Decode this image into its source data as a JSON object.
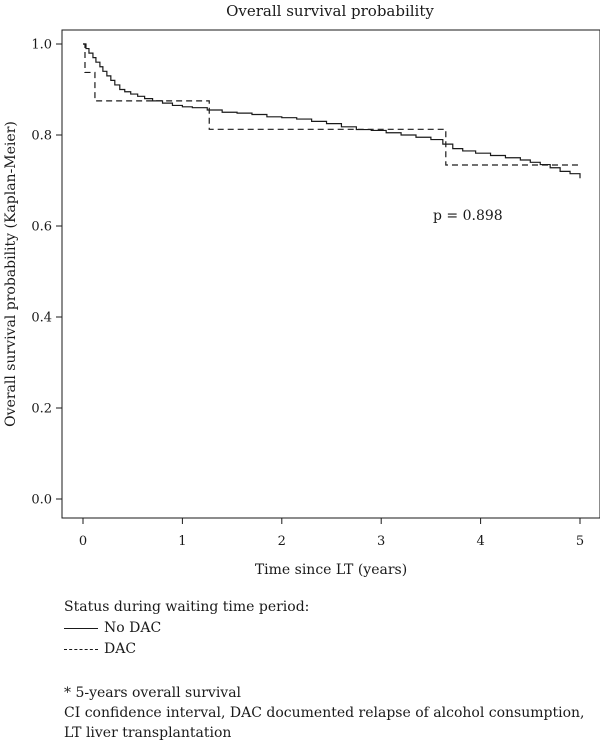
{
  "chart_data": {
    "type": "line",
    "title": "Overall survival probability",
    "xlabel": "Time since LT (years)",
    "ylabel": "Overall survival probability (Kaplan-Meier)",
    "xlim": [
      0,
      5
    ],
    "ylim": [
      0,
      1
    ],
    "x_ticks": [
      "0",
      "1",
      "2",
      "3",
      "4",
      "5"
    ],
    "y_ticks": [
      "0.0",
      "0.2",
      "0.4",
      "0.6",
      "0.8",
      "1.0"
    ],
    "grid": false,
    "annotation": "p = 0.898",
    "series": [
      {
        "name": "No DAC",
        "style": "solid",
        "x": [
          0,
          0.03,
          0.06,
          0.1,
          0.13,
          0.17,
          0.2,
          0.24,
          0.28,
          0.32,
          0.37,
          0.42,
          0.48,
          0.55,
          0.62,
          0.7,
          0.8,
          0.9,
          1.0,
          1.1,
          1.25,
          1.4,
          1.55,
          1.7,
          1.85,
          2.0,
          2.15,
          2.3,
          2.45,
          2.6,
          2.75,
          2.9,
          3.05,
          3.2,
          3.35,
          3.5,
          3.62,
          3.72,
          3.82,
          3.95,
          4.1,
          4.25,
          4.4,
          4.5,
          4.6,
          4.7,
          4.8,
          4.9,
          5.0
        ],
        "y": [
          1.0,
          0.99,
          0.98,
          0.97,
          0.96,
          0.95,
          0.94,
          0.93,
          0.92,
          0.91,
          0.9,
          0.895,
          0.89,
          0.885,
          0.88,
          0.875,
          0.87,
          0.865,
          0.862,
          0.86,
          0.855,
          0.85,
          0.848,
          0.845,
          0.84,
          0.838,
          0.835,
          0.83,
          0.825,
          0.818,
          0.812,
          0.81,
          0.805,
          0.8,
          0.795,
          0.79,
          0.78,
          0.77,
          0.765,
          0.76,
          0.755,
          0.75,
          0.745,
          0.74,
          0.735,
          0.728,
          0.72,
          0.715,
          0.705
        ]
      },
      {
        "name": "DAC",
        "style": "dashed",
        "x": [
          0,
          0.02,
          0.12,
          1.27,
          3.65,
          5.0
        ],
        "y": [
          1.0,
          0.9375,
          0.875,
          0.8125,
          0.734,
          0.734
        ]
      }
    ]
  },
  "legend": {
    "heading": "Status during waiting time period:",
    "items": [
      "No DAC",
      "DAC"
    ]
  },
  "notes": [
    "* 5-years overall survival",
    "CI confidence interval, DAC documented relapse of alcohol consumption,",
    "LT liver transplantation"
  ]
}
